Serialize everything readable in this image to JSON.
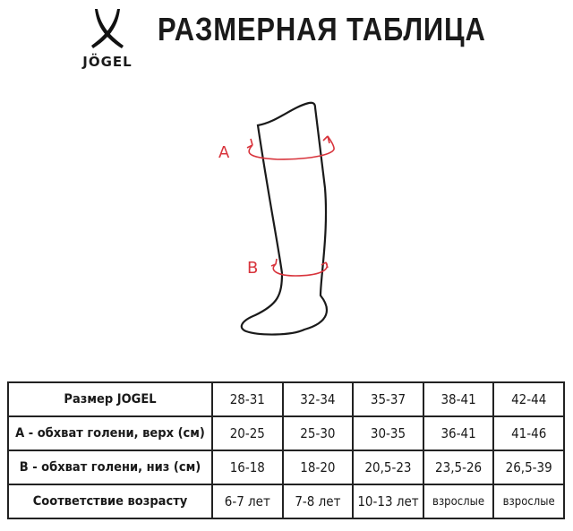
{
  "brand": {
    "logo_text": "JÖGEL"
  },
  "title": "РАЗМЕРНАЯ ТАБЛИЦА",
  "diagram": {
    "label_a": "A",
    "label_b": "B",
    "accent_color": "#d8343c"
  },
  "table": {
    "rows": [
      {
        "label": "Размер JOGEL",
        "values": [
          "28-31",
          "32-34",
          "35-37",
          "38-41",
          "42-44"
        ]
      },
      {
        "label": "A - обхват голени, верх (см)",
        "values": [
          "20-25",
          "25-30",
          "30-35",
          "36-41",
          "41-46"
        ]
      },
      {
        "label": "B - обхват голени, низ (см)",
        "values": [
          "16-18",
          "18-20",
          "20,5-23",
          "23,5-26",
          "26,5-39"
        ]
      },
      {
        "label": "Соответствие возрасту",
        "values": [
          "6-7 лет",
          "7-8 лет",
          "10-13 лет",
          "взрослые",
          "взрослые"
        ]
      }
    ]
  }
}
